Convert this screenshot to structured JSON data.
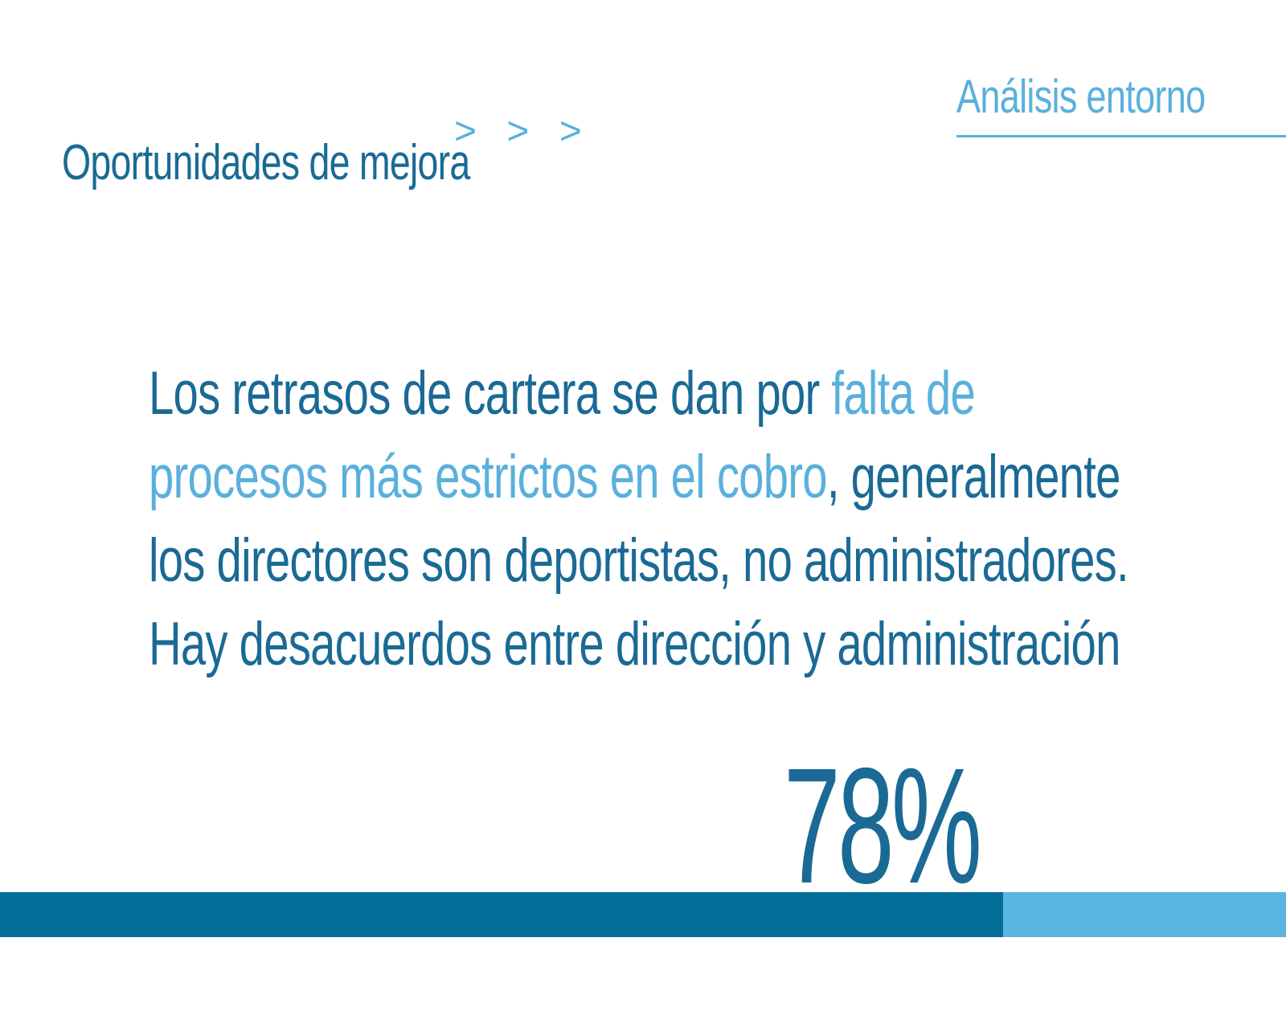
{
  "header": {
    "section_label": "Análisis entorno",
    "title": "Oportunidades de mejora",
    "chevrons": "> > >"
  },
  "statement": {
    "part1": "Los retrasos de cartera se dan por ",
    "highlight": "falta de procesos más estrictos en el cobro",
    "part2": ", generalmente los directores son deportistas, no administradores. Hay desacuerdos entre dirección y administración"
  },
  "stat": {
    "value_label": "78%",
    "progress_fraction": 0.78
  },
  "colors": {
    "primary": "#1a6a95",
    "accent": "#5ab0dc",
    "bar_fill": "#036e98",
    "bar_track": "#5ab6e0"
  }
}
